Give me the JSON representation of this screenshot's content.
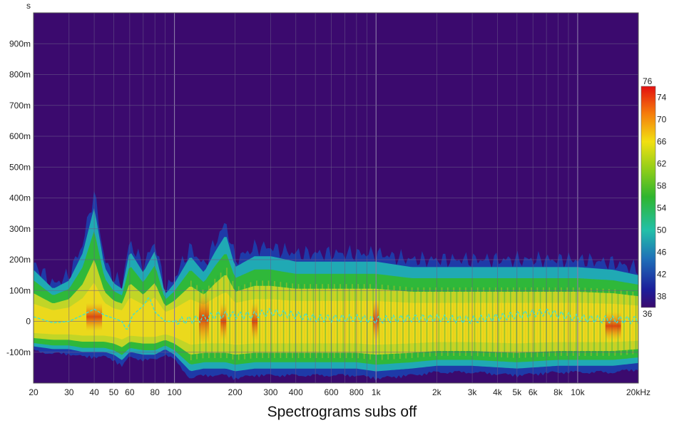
{
  "chart_data": {
    "type": "heatmap",
    "title": "Spectrograms subs off",
    "xlabel": "",
    "ylabel": "s",
    "x_scale": "log",
    "x_unit_suffix": "kHz",
    "xlim": [
      20,
      20000
    ],
    "ylim": [
      -0.2,
      1.0
    ],
    "x_tick_labels": [
      {
        "value": 20,
        "label": "20"
      },
      {
        "value": 30,
        "label": "30"
      },
      {
        "value": 40,
        "label": "40"
      },
      {
        "value": 50,
        "label": "50"
      },
      {
        "value": 60,
        "label": "60"
      },
      {
        "value": 80,
        "label": "80"
      },
      {
        "value": 100,
        "label": "100"
      },
      {
        "value": 200,
        "label": "200"
      },
      {
        "value": 300,
        "label": "300"
      },
      {
        "value": 400,
        "label": "400"
      },
      {
        "value": 600,
        "label": "600"
      },
      {
        "value": 800,
        "label": "800"
      },
      {
        "value": 1000,
        "label": "1k"
      },
      {
        "value": 2000,
        "label": "2k"
      },
      {
        "value": 3000,
        "label": "3k"
      },
      {
        "value": 4000,
        "label": "4k"
      },
      {
        "value": 5000,
        "label": "5k"
      },
      {
        "value": 6000,
        "label": "6k"
      },
      {
        "value": 8000,
        "label": "8k"
      },
      {
        "value": 10000,
        "label": "10k"
      },
      {
        "value": 20000,
        "label": "20kHz"
      }
    ],
    "y_tick_labels": [
      {
        "value": 0.9,
        "label": "900m"
      },
      {
        "value": 0.8,
        "label": "800m"
      },
      {
        "value": 0.7,
        "label": "700m"
      },
      {
        "value": 0.6,
        "label": "600m"
      },
      {
        "value": 0.5,
        "label": "500m"
      },
      {
        "value": 0.4,
        "label": "400m"
      },
      {
        "value": 0.3,
        "label": "300m"
      },
      {
        "value": 0.2,
        "label": "200m"
      },
      {
        "value": 0.1,
        "label": "100m"
      },
      {
        "value": 0.0,
        "label": "0"
      },
      {
        "value": -0.1,
        "label": "-100m"
      }
    ],
    "colorbar": {
      "min": 36,
      "max": 76,
      "tick_labels": [
        "76",
        "74",
        "70",
        "66",
        "62",
        "58",
        "54",
        "50",
        "46",
        "42",
        "38",
        "36"
      ],
      "tick_values": [
        76,
        74,
        70,
        66,
        62,
        58,
        54,
        50,
        46,
        42,
        38,
        36
      ]
    },
    "background_color": "#3b0a6e",
    "peak_curve_color": "#40e0d0",
    "peak_curve_style": "dashed",
    "grid": true,
    "energy_envelope": {
      "freq": [
        20,
        25,
        30,
        35,
        40,
        45,
        50,
        55,
        60,
        70,
        80,
        90,
        100,
        120,
        140,
        160,
        180,
        200,
        250,
        300,
        400,
        500,
        600,
        800,
        1000,
        1500,
        2000,
        3000,
        5000,
        8000,
        10000,
        15000,
        20000
      ],
      "upper": [
        0.19,
        0.12,
        0.15,
        0.25,
        0.42,
        0.2,
        0.14,
        0.12,
        0.26,
        0.18,
        0.26,
        0.1,
        0.14,
        0.24,
        0.18,
        0.26,
        0.32,
        0.2,
        0.24,
        0.24,
        0.22,
        0.22,
        0.22,
        0.22,
        0.22,
        0.2,
        0.2,
        0.2,
        0.2,
        0.2,
        0.2,
        0.19,
        0.17
      ],
      "lower": [
        -0.09,
        -0.1,
        -0.1,
        -0.11,
        -0.11,
        -0.11,
        -0.12,
        -0.14,
        -0.11,
        -0.12,
        -0.12,
        -0.1,
        -0.12,
        -0.18,
        -0.17,
        -0.17,
        -0.17,
        -0.18,
        -0.17,
        -0.17,
        -0.17,
        -0.17,
        -0.17,
        -0.17,
        -0.18,
        -0.17,
        -0.16,
        -0.16,
        -0.17,
        -0.16,
        -0.16,
        -0.16,
        -0.15
      ]
    },
    "peak_curve": {
      "freq": [
        20,
        25,
        30,
        35,
        40,
        45,
        50,
        55,
        58,
        62,
        70,
        75,
        80,
        90,
        100,
        120,
        140,
        160,
        200,
        250,
        300,
        400,
        500,
        600,
        800,
        1000,
        1500,
        2000,
        3000,
        5000,
        7000,
        10000,
        15000,
        20000
      ],
      "time": [
        0.015,
        -0.005,
        0.0,
        0.02,
        0.04,
        0.02,
        0.01,
        0.0,
        -0.03,
        0.02,
        0.05,
        0.08,
        0.03,
        0.0,
        0.0,
        0.005,
        0.01,
        0.02,
        0.02,
        0.02,
        0.03,
        0.02,
        0.01,
        0.01,
        0.01,
        0.005,
        0.01,
        0.01,
        0.005,
        0.02,
        0.03,
        0.01,
        0.005,
        0.005
      ]
    }
  }
}
